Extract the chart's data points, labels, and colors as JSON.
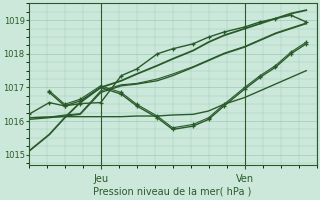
{
  "xlabel": "Pression niveau de la mer( hPa )",
  "ylim": [
    1014.7,
    1019.5
  ],
  "xlim": [
    0,
    56
  ],
  "yticks": [
    1015,
    1016,
    1017,
    1018,
    1019
  ],
  "xtick_positions": [
    14,
    42
  ],
  "xtick_labels": [
    "Jeu",
    "Ven"
  ],
  "bg_color": "#cce8da",
  "grid_color": "#99ccb8",
  "line_color": "#2a5a2a",
  "figsize": [
    3.2,
    2.0
  ],
  "dpi": 100,
  "series": [
    {
      "x": [
        0,
        4,
        7,
        10,
        14,
        18,
        21,
        25,
        28,
        32,
        35,
        38,
        42,
        45,
        48,
        51,
        54
      ],
      "y": [
        1015.1,
        1015.6,
        1016.1,
        1016.55,
        1017.0,
        1017.2,
        1017.4,
        1017.65,
        1017.85,
        1018.1,
        1018.35,
        1018.55,
        1018.75,
        1018.9,
        1019.05,
        1019.2,
        1019.3
      ],
      "marker": null,
      "lw": 1.3
    },
    {
      "x": [
        0,
        4,
        7,
        10,
        14,
        18,
        21,
        25,
        28,
        32,
        35,
        38,
        42,
        45,
        48,
        51,
        54
      ],
      "y": [
        1016.05,
        1016.1,
        1016.15,
        1016.2,
        1016.85,
        1017.05,
        1017.1,
        1017.2,
        1017.35,
        1017.6,
        1017.8,
        1018.0,
        1018.2,
        1018.4,
        1018.6,
        1018.75,
        1018.9
      ],
      "marker": null,
      "lw": 1.0
    },
    {
      "x": [
        0,
        4,
        7,
        10,
        14,
        18,
        21,
        25,
        28,
        32,
        35,
        38,
        42,
        45,
        48,
        51,
        54
      ],
      "y": [
        1016.1,
        1016.12,
        1016.18,
        1016.22,
        1016.9,
        1017.08,
        1017.12,
        1017.25,
        1017.4,
        1017.62,
        1017.82,
        1018.02,
        1018.22,
        1018.42,
        1018.62,
        1018.77,
        1018.92
      ],
      "marker": null,
      "lw": 0.8
    },
    {
      "x": [
        0,
        4,
        7,
        10,
        14,
        18,
        21,
        25,
        28,
        32,
        35,
        38,
        42,
        45,
        48,
        51,
        54
      ],
      "y": [
        1016.1,
        1016.12,
        1016.13,
        1016.13,
        1016.13,
        1016.13,
        1016.15,
        1016.15,
        1016.18,
        1016.2,
        1016.3,
        1016.5,
        1016.7,
        1016.9,
        1017.1,
        1017.3,
        1017.5
      ],
      "marker": null,
      "lw": 1.0
    },
    {
      "x": [
        4,
        7,
        10,
        14,
        18,
        21,
        25,
        28,
        32,
        35,
        38,
        42,
        45,
        48,
        51,
        54
      ],
      "y": [
        1016.85,
        1016.45,
        1016.6,
        1017.0,
        1016.8,
        1016.45,
        1016.1,
        1015.75,
        1015.85,
        1016.05,
        1016.45,
        1016.95,
        1017.3,
        1017.6,
        1018.0,
        1018.3
      ],
      "marker": "+",
      "lw": 1.0
    },
    {
      "x": [
        4,
        7,
        10,
        14,
        18,
        21,
        25,
        28,
        32,
        35,
        38,
        42,
        45,
        48,
        51,
        54
      ],
      "y": [
        1016.9,
        1016.5,
        1016.65,
        1017.05,
        1016.85,
        1016.5,
        1016.15,
        1015.8,
        1015.9,
        1016.1,
        1016.5,
        1017.0,
        1017.35,
        1017.65,
        1018.05,
        1018.35
      ],
      "marker": "+",
      "lw": 0.8
    },
    {
      "x": [
        0,
        4,
        7,
        10,
        14,
        18,
        21,
        25,
        28,
        32,
        35,
        38,
        42,
        45,
        48,
        51,
        54
      ],
      "y": [
        1016.2,
        1016.55,
        1016.45,
        1016.52,
        1016.55,
        1017.35,
        1017.55,
        1018.0,
        1018.15,
        1018.3,
        1018.5,
        1018.65,
        1018.8,
        1018.95,
        1019.05,
        1019.15,
        1018.95
      ],
      "marker": "+",
      "lw": 1.0
    }
  ]
}
